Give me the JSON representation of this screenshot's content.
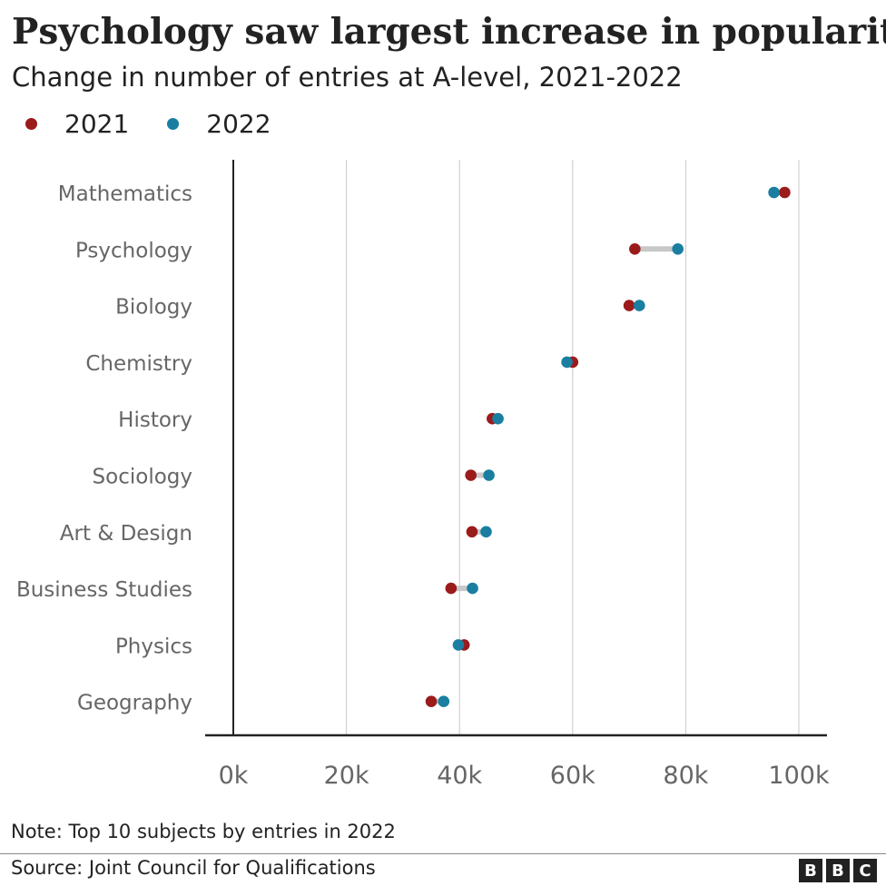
{
  "title": "Psychology saw largest increase in popularity",
  "subtitle": "Change in number of entries at A-level, 2021-2022",
  "legend": [
    {
      "label": "2021",
      "color": "#9b1b1b"
    },
    {
      "label": "2022",
      "color": "#1a7ea1"
    }
  ],
  "note": "Note: Top 10 subjects by entries in 2022",
  "source": "Source: Joint Council for Qualifications",
  "logo": [
    "B",
    "B",
    "C"
  ],
  "colors": {
    "series_2021": "#9b1b1b",
    "series_2022": "#1a7ea1",
    "connector": "#c8c8c8",
    "grid": "#c8c8c8",
    "axis": "#222222",
    "tick_label": "#666666"
  },
  "chart_data": {
    "type": "scatter",
    "orientation": "horizontal-dumbbell",
    "categories": [
      "Mathematics",
      "Psychology",
      "Biology",
      "Chemistry",
      "History",
      "Sociology",
      "Art & Design",
      "Business Studies",
      "Physics",
      "Geography"
    ],
    "series": [
      {
        "name": "2021",
        "values": [
          97500,
          71000,
          70000,
          60000,
          45800,
          42000,
          42200,
          38500,
          40800,
          35000
        ]
      },
      {
        "name": "2022",
        "values": [
          95600,
          78600,
          71800,
          59000,
          46800,
          45200,
          44700,
          42300,
          39800,
          37200
        ]
      }
    ],
    "xlim": [
      0,
      100000
    ],
    "xticks": [
      0,
      20000,
      40000,
      60000,
      80000,
      100000
    ],
    "xtick_labels": [
      "0k",
      "20k",
      "40k",
      "60k",
      "80k",
      "100k"
    ],
    "grid": "vertical",
    "legend_position": "top-left"
  }
}
